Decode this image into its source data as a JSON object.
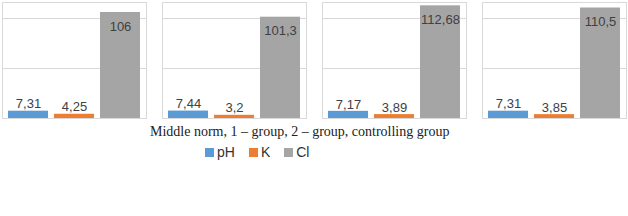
{
  "chart_data": {
    "type": "bar",
    "xlabel": "Middle norm, 1 – group, 2 – group, controlling group",
    "categories": [
      null,
      null,
      null,
      null
    ],
    "series": [
      {
        "name": "pH",
        "color": "#5b9bd5",
        "values": [
          7.31,
          7.44,
          7.17,
          7.31
        ],
        "value_labels": [
          "7,31",
          "7,44",
          "7,17",
          "7,31"
        ]
      },
      {
        "name": "K",
        "color": "#ed7d31",
        "values": [
          4.25,
          3.2,
          3.89,
          3.85
        ],
        "value_labels": [
          "4,25",
          "3,2",
          "3,89",
          "3,85"
        ]
      },
      {
        "name": "Cl",
        "color": "#a5a5a5",
        "values": [
          106,
          101.3,
          112.68,
          110.5
        ],
        "value_labels": [
          "106",
          "101,3",
          "112,68",
          "110,5"
        ]
      }
    ],
    "ylim": [
      0,
      116
    ],
    "yticks": [
      0,
      50,
      100
    ],
    "grid": true,
    "tick_labels": false,
    "data_labels": true,
    "legend": "bottom"
  }
}
